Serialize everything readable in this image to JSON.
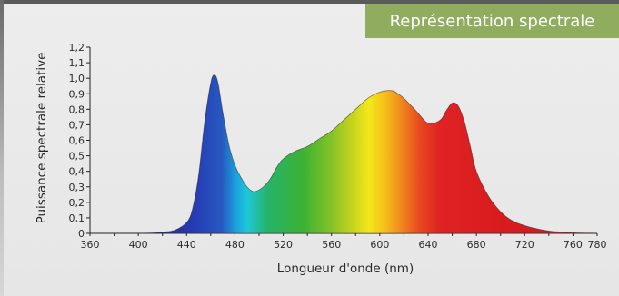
{
  "title": "Représentation spectrale",
  "chart_data": {
    "type": "area",
    "title": "Représentation spectrale",
    "xlabel": "Longueur d'onde (nm)",
    "ylabel": "Puissance spectrale relative",
    "xlim": [
      360,
      780
    ],
    "ylim": [
      0,
      1.2
    ],
    "x_ticks": [
      "360",
      "400",
      "440",
      "480",
      "520",
      "560",
      "600",
      "640",
      "680",
      "720",
      "760",
      "780"
    ],
    "y_ticks": [
      "0",
      "0,1",
      "0,2",
      "0,3",
      "0,4",
      "0,5",
      "0,6",
      "0,7",
      "0,8",
      "0,9",
      "1,0",
      "1,1",
      "1,2"
    ],
    "grid": false,
    "series": [
      {
        "x": [
          400,
          410,
          420,
          430,
          440,
          445,
          450,
          455,
          460,
          463,
          466,
          470,
          475,
          480,
          485,
          490,
          495,
          500,
          505,
          510,
          515,
          520,
          530,
          540,
          550,
          560,
          570,
          580,
          590,
          600,
          610,
          615,
          620,
          630,
          640,
          650,
          655,
          660,
          665,
          670,
          675,
          680,
          690,
          700,
          710,
          720,
          730,
          740,
          750,
          760,
          770,
          780
        ],
        "y": [
          0.0,
          0.002,
          0.008,
          0.02,
          0.07,
          0.16,
          0.38,
          0.72,
          0.97,
          1.02,
          0.97,
          0.78,
          0.57,
          0.44,
          0.36,
          0.3,
          0.27,
          0.28,
          0.31,
          0.36,
          0.43,
          0.48,
          0.53,
          0.56,
          0.61,
          0.66,
          0.73,
          0.8,
          0.87,
          0.91,
          0.92,
          0.9,
          0.87,
          0.79,
          0.71,
          0.73,
          0.79,
          0.84,
          0.82,
          0.72,
          0.56,
          0.4,
          0.24,
          0.14,
          0.08,
          0.05,
          0.03,
          0.015,
          0.008,
          0.004,
          0.002,
          0.0
        ]
      }
    ]
  }
}
